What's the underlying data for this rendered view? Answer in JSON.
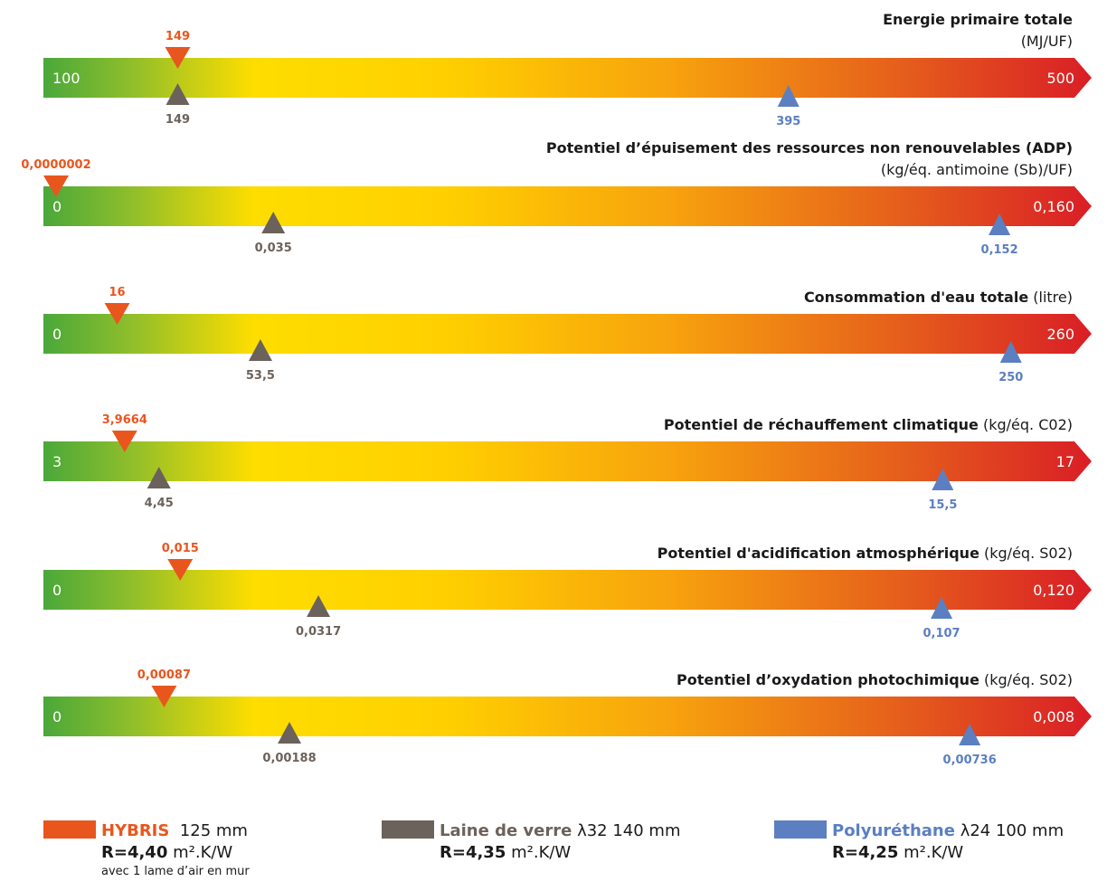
{
  "colors": {
    "hybris": "#e8561e",
    "laine": "#6b625b",
    "poly": "#5b7fc1"
  },
  "chart_data": {
    "type": "scale-comparison",
    "indicators": [
      {
        "title_bold": "Energie primaire totale",
        "title_unit": "",
        "subtitle": "(MJ/UF)",
        "min_label": "100",
        "max_label": "500",
        "min": 100,
        "max": 500,
        "hybris": {
          "value": 149,
          "label": "149"
        },
        "laine": {
          "value": 149,
          "label": "149"
        },
        "poly": {
          "value": 395,
          "label": "395"
        }
      },
      {
        "title_bold": "Potentiel d’épuisement des ressources non renouvelables (ADP)",
        "title_unit": "",
        "subtitle": "(kg/éq. antimoine (Sb)/UF)",
        "min_label": "0",
        "max_label": "0,160",
        "min": 0,
        "max": 0.16,
        "hybris": {
          "value": 2e-07,
          "label": "0,0000002"
        },
        "laine": {
          "value": 0.035,
          "label": "0,035"
        },
        "poly": {
          "value": 0.152,
          "label": "0,152"
        }
      },
      {
        "title_bold": "Consommation d'eau totale",
        "title_unit": " (litre)",
        "subtitle": "",
        "min_label": "0",
        "max_label": "260",
        "min": 0,
        "max": 260,
        "hybris": {
          "value": 16,
          "label": "16"
        },
        "laine": {
          "value": 53.5,
          "label": "53,5"
        },
        "poly": {
          "value": 250,
          "label": "250"
        }
      },
      {
        "title_bold": "Potentiel de réchauffement climatique",
        "title_unit": " (kg/éq. C02)",
        "subtitle": "",
        "min_label": "3",
        "max_label": "17",
        "min": 3,
        "max": 17,
        "hybris": {
          "value": 3.9664,
          "label": "3,9664"
        },
        "laine": {
          "value": 4.45,
          "label": "4,45"
        },
        "poly": {
          "value": 15.5,
          "label": "15,5"
        }
      },
      {
        "title_bold": "Potentiel d'acidification atmosphérique",
        "title_unit": " (kg/éq. S02)",
        "subtitle": "",
        "min_label": "0",
        "max_label": "0,120",
        "min": 0,
        "max": 0.12,
        "hybris": {
          "value": 0.015,
          "label": "0,015"
        },
        "laine": {
          "value": 0.0317,
          "label": "0,0317"
        },
        "poly": {
          "value": 0.107,
          "label": "0,107"
        }
      },
      {
        "title_bold": "Potentiel d’oxydation photochimique",
        "title_unit": " (kg/éq. S02)",
        "subtitle": "",
        "min_label": "0",
        "max_label": "0,008",
        "min": 0,
        "max": 0.008,
        "hybris": {
          "value": 0.00087,
          "label": "0,00087"
        },
        "laine": {
          "value": 0.00188,
          "label": "0,00188"
        },
        "poly": {
          "value": 0.00736,
          "label": "0,00736"
        }
      }
    ]
  },
  "legend": {
    "hybris": {
      "name": "HYBRIS",
      "spec": "125 mm",
      "r_label": "R=4,40",
      "r_unit": "m².K/W",
      "note": "avec 1 lame d’air en mur"
    },
    "laine": {
      "name": "Laine de verre",
      "spec": "λ32 140 mm",
      "r_label": "R=4,35",
      "r_unit": "m².K/W"
    },
    "poly": {
      "name": "Polyuréthane",
      "spec": "λ24 100 mm",
      "r_label": "R=4,25",
      "r_unit": "m².K/W"
    }
  }
}
